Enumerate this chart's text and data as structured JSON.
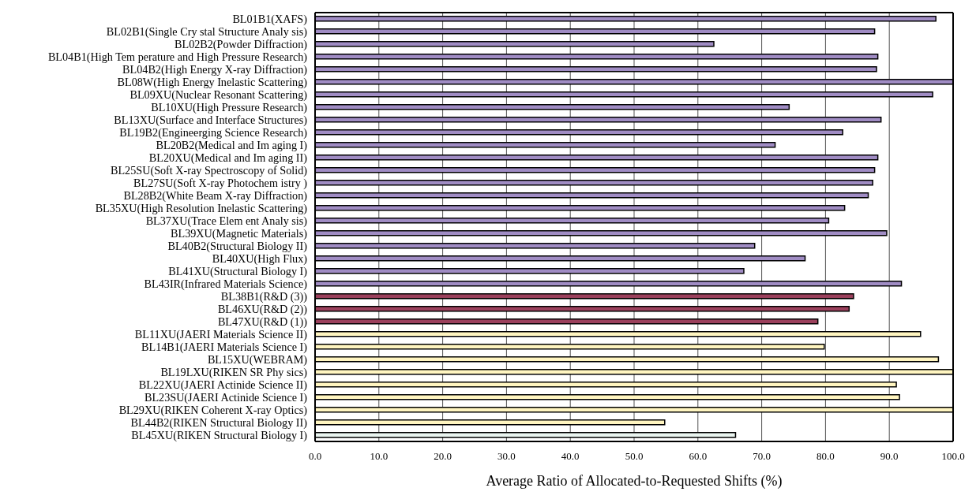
{
  "chart_data": {
    "type": "bar",
    "orientation": "horizontal",
    "xlabel": "Average Ratio of Allocated-to-Requested Shifts (%)",
    "categories": [
      "BL01B1(XAFS)",
      "BL02B1(Single Cry stal Structure Analy sis)",
      "BL02B2(Powder Diffraction)",
      "BL04B1(High Tem perature and High Pressure Research)",
      "BL04B2(High Energy  X-ray  Diffraction)",
      "BL08W(High Energy  Inelastic Scattering)",
      "BL09XU(Nuclear Resonant Scattering)",
      "BL10XU(High Pressure Research)",
      "BL13XU(Surface and Interface Structures)",
      "BL19B2(Engineerging Science Research)",
      "BL20B2(Medical and Im aging I)",
      "BL20XU(Medical and Im aging II)",
      "BL25SU(Soft X-ray  Spectroscopy  of Solid)",
      "BL27SU(Soft X-ray  Photochem istry )",
      "BL28B2(White Beam  X-ray  Diffraction)",
      "BL35XU(High Resolution Inelastic Scattering)",
      "BL37XU(Trace Elem ent Analy sis)",
      "BL39XU(Magnetic Materials)",
      "BL40B2(Structural Biology  II)",
      "BL40XU(High Flux)",
      "BL41XU(Structural Biology  I)",
      "BL43IR(Infrared Materials Science)",
      "BL38B1(R&D (3))",
      "BL46XU(R&D (2))",
      "BL47XU(R&D (1))",
      "BL11XU(JAERI Materials Science II)",
      "BL14B1(JAERI Materials Science I)",
      "BL15XU(WEBRAM)",
      "BL19LXU(RIKEN SR Phy sics)",
      "BL22XU(JAERI Actinide Science II)",
      "BL23SU(JAERI Actinide Science I)",
      "BL29XU(RIKEN Coherent X-ray  Optics)",
      "BL44B2(RIKEN Structural Biology  II)",
      "BL45XU(RIKEN Structural Biology  I)"
    ],
    "values": [
      97.3,
      87.7,
      62.5,
      88.2,
      88.0,
      100,
      96.8,
      74.3,
      88.7,
      82.7,
      72.1,
      88.2,
      87.7,
      87.4,
      86.7,
      83.0,
      80.5,
      89.6,
      68.9,
      76.8,
      67.2,
      91.9,
      84.4,
      83.7,
      78.8,
      94.9,
      79.8,
      97.7,
      100,
      91.1,
      91.6,
      100,
      54.8,
      65.9
    ],
    "colors": [
      "#a08cc4",
      "#a08cc4",
      "#a08cc4",
      "#a08cc4",
      "#a08cc4",
      "#a08cc4",
      "#a08cc4",
      "#a08cc4",
      "#a08cc4",
      "#a08cc4",
      "#a08cc4",
      "#a08cc4",
      "#a08cc4",
      "#a08cc4",
      "#a08cc4",
      "#a08cc4",
      "#a08cc4",
      "#a08cc4",
      "#a08cc4",
      "#a08cc4",
      "#a08cc4",
      "#a08cc4",
      "#9b405c",
      "#9b405c",
      "#9b405c",
      "#fff5c0",
      "#fff5c0",
      "#fff5c0",
      "#fff5c0",
      "#fff5c0",
      "#fff5c0",
      "#fff5c0",
      "#fff5c0",
      "#eaf5f0"
    ],
    "xlim": [
      0,
      100
    ],
    "xticks": [
      {
        "value": 0,
        "label": "0.0"
      },
      {
        "value": 10,
        "label": "10.0"
      },
      {
        "value": 20,
        "label": "20.0"
      },
      {
        "value": 30,
        "label": "30.0"
      },
      {
        "value": 40,
        "label": "40.0"
      },
      {
        "value": 50,
        "label": "50.0"
      },
      {
        "value": 60,
        "label": "60.0"
      },
      {
        "value": 70,
        "label": "70.0"
      },
      {
        "value": 80,
        "label": "80.0"
      },
      {
        "value": 90,
        "label": "90.0"
      },
      {
        "value": 100,
        "label": "100.0"
      }
    ],
    "grid": "x"
  }
}
